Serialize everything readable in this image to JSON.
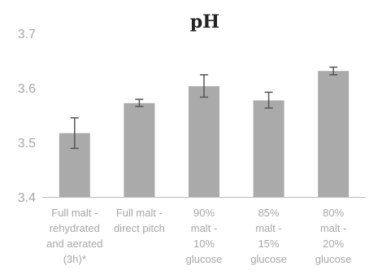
{
  "chart_data": {
    "type": "bar",
    "title": "pH",
    "xlabel": "",
    "ylabel": "",
    "ylim": [
      3.4,
      3.7
    ],
    "yticks": [
      "3.4",
      "3.5",
      "3.6",
      "3.7"
    ],
    "grid": false,
    "legend": "none",
    "categories": [
      "Full malt - rehydrated and aerated (3h)*",
      "Full malt - direct pitch",
      "90% malt - 10% glucose",
      "85% malt - 15% glucose",
      "80% malt - 20% glucose"
    ],
    "category_lines": [
      [
        "Full malt -",
        "rehydrated",
        "and aerated",
        "(3h)*"
      ],
      [
        "Full malt -",
        "direct pitch"
      ],
      [
        "90%",
        "malt -",
        "10%",
        "glucose"
      ],
      [
        "85%",
        "malt -",
        "15%",
        "glucose"
      ],
      [
        "80%",
        "malt -",
        "20%",
        "glucose"
      ]
    ],
    "values": [
      3.517,
      3.572,
      3.603,
      3.577,
      3.631
    ],
    "error_low": [
      3.489,
      3.566,
      3.583,
      3.563,
      3.624
    ],
    "error_high": [
      3.545,
      3.579,
      3.624,
      3.592,
      3.638
    ],
    "colors": {
      "bar": "#aaaaaa",
      "error_bar": "#555555",
      "axis": "#bbbbbb",
      "tick_text": "#a6a6a6",
      "title": "#222222"
    }
  }
}
